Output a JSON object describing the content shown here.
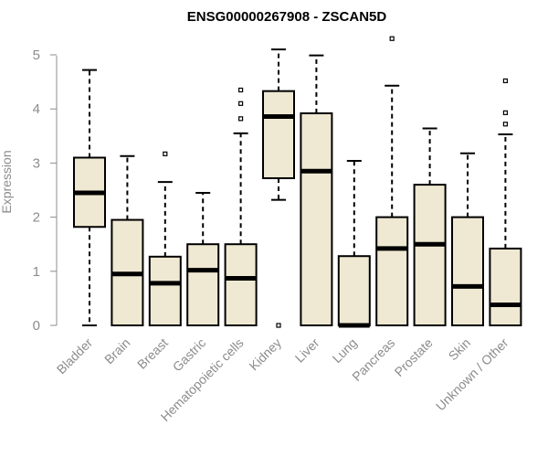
{
  "chart_data": {
    "type": "box",
    "title": "ENSG00000267908 - ZSCAN5D",
    "xlabel": "",
    "ylabel": "Expression",
    "ylim": [
      0,
      5.2
    ],
    "yticks": [
      0,
      1,
      2,
      3,
      4,
      5
    ],
    "grid": false,
    "legend": "none",
    "box_fill": "#efe8d2",
    "categories": [
      "Bladder",
      "Brain",
      "Breast",
      "Gastric",
      "Hematopoietic cells",
      "Kidney",
      "Liver",
      "Lung",
      "Pancreas",
      "Prostate",
      "Skin",
      "Unknown / Other"
    ],
    "boxes": [
      {
        "category": "Bladder",
        "whisker_low": 0.0,
        "q1": 1.82,
        "median": 2.45,
        "q3": 3.1,
        "whisker_high": 4.72,
        "outliers": []
      },
      {
        "category": "Brain",
        "whisker_low": 0.0,
        "q1": 0.0,
        "median": 0.95,
        "q3": 1.95,
        "whisker_high": 3.13,
        "outliers": []
      },
      {
        "category": "Breast",
        "whisker_low": 0.0,
        "q1": 0.0,
        "median": 0.78,
        "q3": 1.27,
        "whisker_high": 2.65,
        "outliers": [
          3.17
        ]
      },
      {
        "category": "Gastric",
        "whisker_low": 0.0,
        "q1": 0.0,
        "median": 1.02,
        "q3": 1.5,
        "whisker_high": 2.45,
        "outliers": []
      },
      {
        "category": "Hematopoietic cells",
        "whisker_low": 0.0,
        "q1": 0.0,
        "median": 0.87,
        "q3": 1.5,
        "whisker_high": 3.55,
        "outliers": [
          3.82,
          4.1,
          4.35
        ]
      },
      {
        "category": "Kidney",
        "whisker_low": 2.32,
        "q1": 2.72,
        "median": 3.86,
        "q3": 4.33,
        "whisker_high": 5.1,
        "outliers": [
          0.0
        ]
      },
      {
        "category": "Liver",
        "whisker_low": 0.0,
        "q1": 0.0,
        "median": 2.85,
        "q3": 3.92,
        "whisker_high": 4.99,
        "outliers": []
      },
      {
        "category": "Lung",
        "whisker_low": 0.0,
        "q1": 0.0,
        "median": 0.0,
        "q3": 1.28,
        "whisker_high": 3.04,
        "outliers": []
      },
      {
        "category": "Pancreas",
        "whisker_low": 0.0,
        "q1": 0.0,
        "median": 1.42,
        "q3": 2.0,
        "whisker_high": 4.43,
        "outliers": [
          5.3
        ]
      },
      {
        "category": "Prostate",
        "whisker_low": 0.0,
        "q1": 0.0,
        "median": 1.5,
        "q3": 2.6,
        "whisker_high": 3.64,
        "outliers": []
      },
      {
        "category": "Skin",
        "whisker_low": 0.0,
        "q1": 0.0,
        "median": 0.72,
        "q3": 2.0,
        "whisker_high": 3.18,
        "outliers": []
      },
      {
        "category": "Unknown / Other",
        "whisker_low": 0.0,
        "q1": 0.0,
        "median": 0.38,
        "q3": 1.42,
        "whisker_high": 3.53,
        "outliers": [
          3.72,
          3.93,
          4.52
        ]
      }
    ]
  }
}
